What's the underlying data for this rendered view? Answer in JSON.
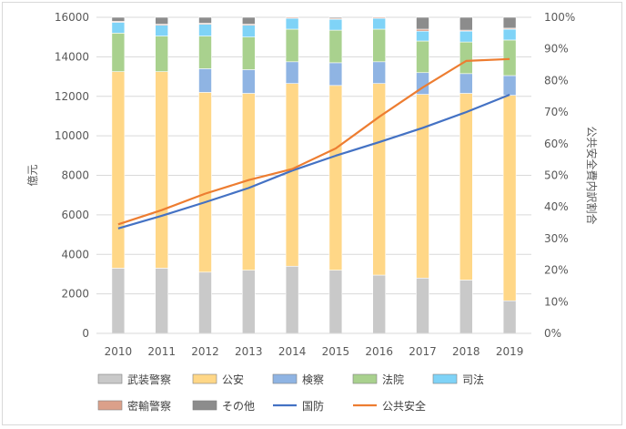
{
  "chart_data": {
    "type": "bar",
    "title": "",
    "xlabel": "",
    "ylabel": "億元",
    "y2label": "公共安全費内訳割合",
    "ylim": [
      0,
      16000
    ],
    "y2lim": [
      0,
      1
    ],
    "categories": [
      "2010",
      "2011",
      "2012",
      "2013",
      "2014",
      "2015",
      "2016",
      "2017",
      "2018",
      "2019"
    ],
    "y_ticks": [
      "0",
      "2000",
      "4000",
      "6000",
      "8000",
      "10000",
      "12000",
      "14000",
      "16000"
    ],
    "y2_ticks": [
      "0%",
      "10%",
      "20%",
      "30%",
      "40%",
      "50%",
      "60%",
      "70%",
      "80%",
      "90%",
      "100%"
    ],
    "stacked_series": [
      {
        "name": "武装警察",
        "color": "#c9c9c9",
        "values": [
          3300,
          3300,
          3100,
          3200,
          3400,
          3200,
          2950,
          2800,
          2700,
          1650
        ]
      },
      {
        "name": "公安",
        "color": "#ffd787",
        "values": [
          9950,
          9950,
          9100,
          8950,
          9250,
          9350,
          9700,
          9300,
          9450,
          10400
        ]
      },
      {
        "name": "検察",
        "color": "#8fb4e3",
        "values": [
          0,
          0,
          1200,
          1200,
          1100,
          1150,
          1100,
          1100,
          1000,
          1000
        ]
      },
      {
        "name": "法院",
        "color": "#a9d18e",
        "values": [
          1950,
          1800,
          1650,
          1650,
          1650,
          1650,
          1650,
          1600,
          1600,
          1800
        ]
      },
      {
        "name": "司法",
        "color": "#7fd3f7",
        "values": [
          550,
          550,
          600,
          600,
          550,
          550,
          550,
          500,
          550,
          550
        ]
      },
      {
        "name": "密輸警察",
        "color": "#dba08a",
        "values": [
          50,
          50,
          50,
          50,
          50,
          50,
          50,
          100,
          50,
          50
        ]
      },
      {
        "name": "その他",
        "color": "#8c8c8c",
        "values": [
          200,
          350,
          300,
          350,
          0,
          50,
          0,
          600,
          650,
          550
        ]
      }
    ],
    "line_series": [
      {
        "name": "国防",
        "color": "#4472c4",
        "axis": "right",
        "values": [
          0.332,
          0.372,
          0.415,
          0.46,
          0.515,
          0.562,
          0.605,
          0.65,
          0.7,
          0.755
        ]
      },
      {
        "name": "公共安全",
        "color": "#ed7d31",
        "axis": "right",
        "values": [
          0.345,
          0.39,
          0.442,
          0.485,
          0.52,
          0.585,
          0.685,
          0.778,
          0.862,
          0.868
        ]
      }
    ]
  }
}
